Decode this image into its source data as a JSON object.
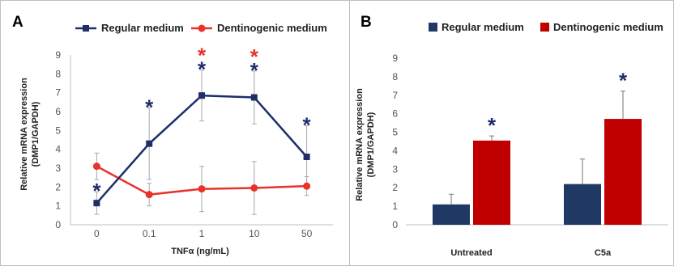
{
  "chart_data": [
    {
      "panel_label": "A",
      "type": "line",
      "categories": [
        "0",
        "0.1",
        "1",
        "10",
        "50"
      ],
      "series": [
        {
          "name": "Regular medium",
          "color": "#1f2d6b",
          "marker": "square",
          "values": [
            1.15,
            4.3,
            6.85,
            6.75,
            3.6
          ],
          "error": [
            0.6,
            1.9,
            1.35,
            1.4,
            1.65
          ],
          "significant": [
            true,
            true,
            true,
            true,
            true
          ]
        },
        {
          "name": "Dentinogenic medium",
          "color": "#e8322b",
          "marker": "circle",
          "values": [
            3.1,
            1.6,
            1.9,
            1.95,
            2.05
          ],
          "error": [
            0.7,
            0.6,
            1.2,
            1.4,
            0.5
          ],
          "significant": [
            false,
            false,
            true,
            true,
            false
          ]
        }
      ],
      "star_symbol": "*",
      "xlabel": "TNFα (ng/mL)",
      "ylabel_line1": "Relative mRNA expression",
      "ylabel_line2": "(DMP1/GAPDH)",
      "ylim": [
        0,
        9
      ],
      "yticks": [
        "0",
        "1",
        "2",
        "3",
        "4",
        "5",
        "6",
        "7",
        "8",
        "9"
      ],
      "grid": false,
      "legend_position": "top"
    },
    {
      "panel_label": "B",
      "type": "bar",
      "categories": [
        "Untreated",
        "C5a"
      ],
      "series": [
        {
          "name": "Regular medium",
          "color": "#1f3864",
          "values": [
            1.1,
            2.2
          ],
          "error": [
            0.55,
            1.35
          ],
          "significant": [
            false,
            false
          ]
        },
        {
          "name": "Dentinogenic medium",
          "color": "#c00000",
          "values": [
            4.55,
            5.72
          ],
          "error": [
            0.25,
            1.5
          ],
          "significant": [
            true,
            true
          ]
        }
      ],
      "star_symbol": "*",
      "star_color": "#1f2d6b",
      "xlabel": "",
      "ylabel_line1": "Relative mRNA expression",
      "ylabel_line2": "(DMP1/GAPDH)",
      "ylim": [
        0,
        9
      ],
      "yticks": [
        "0",
        "1",
        "2",
        "3",
        "4",
        "5",
        "6",
        "7",
        "8",
        "9"
      ],
      "grid": false,
      "legend_position": "top"
    }
  ]
}
